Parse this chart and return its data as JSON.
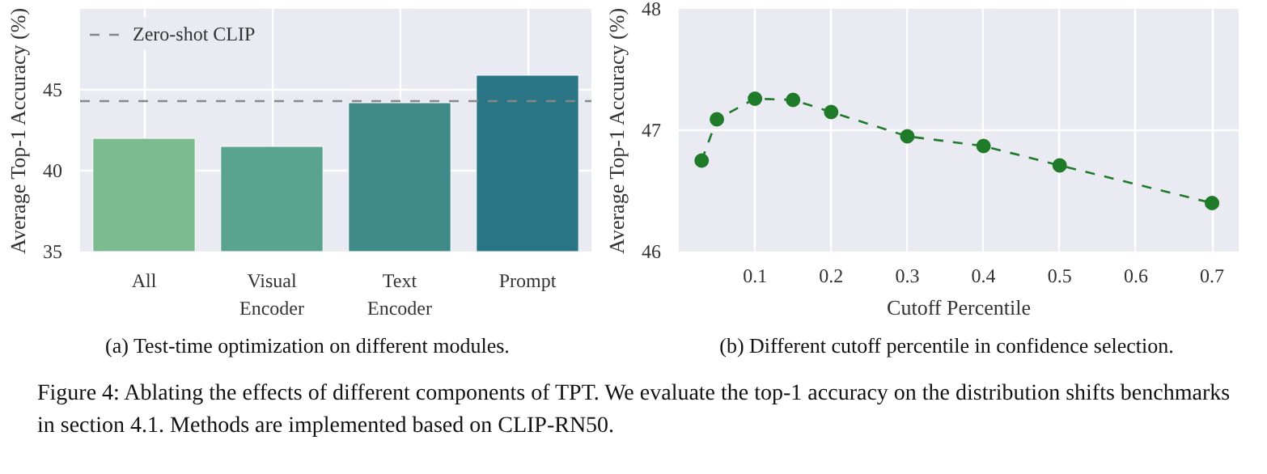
{
  "chart_data": [
    {
      "type": "bar",
      "ylabel": "Average Top-1 Accuracy (%)",
      "categories": [
        "All",
        "Visual Encoder",
        "Text Encoder",
        "Prompt"
      ],
      "values": [
        42.0,
        41.5,
        44.2,
        45.9
      ],
      "colors": [
        "#7bbb8f",
        "#5aa38f",
        "#3f8a88",
        "#2a7585"
      ],
      "ylim": [
        35,
        50
      ],
      "yticks": [
        35,
        40,
        45
      ],
      "grid": true,
      "legend": "top left",
      "ref_lines": [
        {
          "axis": "y",
          "value": 44.3,
          "label": "Zero-shot CLIP",
          "color": "#888888",
          "line_style": "dashed"
        }
      ],
      "annotations": [
        "(a) Test-time optimization on different modules."
      ]
    },
    {
      "type": "line",
      "xlabel": "Cutoff Percentile",
      "ylabel": "Average Top-1 Accuracy (%)",
      "x": [
        0.03,
        0.05,
        0.1,
        0.15,
        0.2,
        0.3,
        0.4,
        0.5,
        0.7
      ],
      "series": [
        {
          "color": "#1f7a2a",
          "values": [
            46.75,
            47.09,
            47.26,
            47.25,
            47.15,
            46.95,
            46.87,
            46.71,
            46.4
          ]
        }
      ],
      "xlim": [
        0,
        0.735
      ],
      "xticks": [
        0.1,
        0.2,
        0.3,
        0.4,
        0.5,
        0.6,
        0.7
      ],
      "ylim": [
        46,
        48
      ],
      "yticks": [
        46,
        47,
        48
      ],
      "grid": true,
      "marker": "circle",
      "line_style": "dashed",
      "annotations": [
        "(b) Different cutoff percentile in confidence selection.",
        "Figure 4: Ablating the effects of different components of TPT. We evaluate the top-1 accuracy on the distribution shifts benchmarks in section 4.1. Methods are implemented based on CLIP-RN50."
      ]
    }
  ]
}
